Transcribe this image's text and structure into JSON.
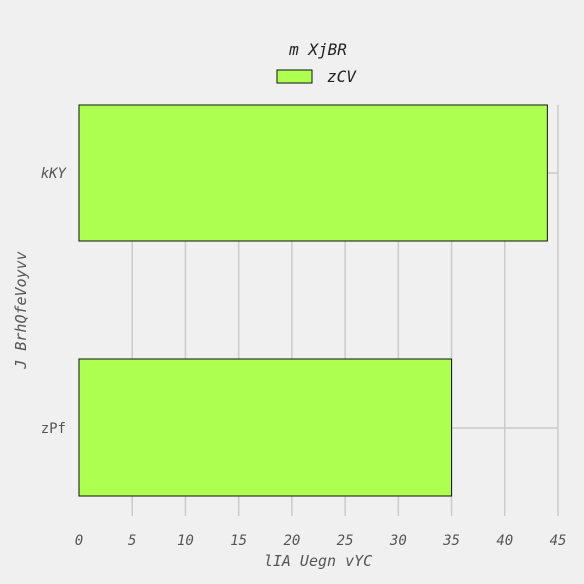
{
  "chart_data": {
    "type": "bar",
    "orientation": "horizontal",
    "categories": [
      "kKY",
      "zPf"
    ],
    "series": [
      {
        "name": "zCV",
        "values": [
          44,
          35
        ],
        "color": "#adff50"
      }
    ],
    "xlabel": "lIA Uegn vYC",
    "ylabel": "J BrhQfeVoyvv",
    "xlim": [
      0,
      45
    ],
    "xticks": [
      0,
      5,
      10,
      15,
      20,
      25,
      30,
      35,
      40,
      45
    ],
    "grid": true,
    "legend": {
      "title": "m XjBR",
      "placement": "top-center"
    }
  }
}
